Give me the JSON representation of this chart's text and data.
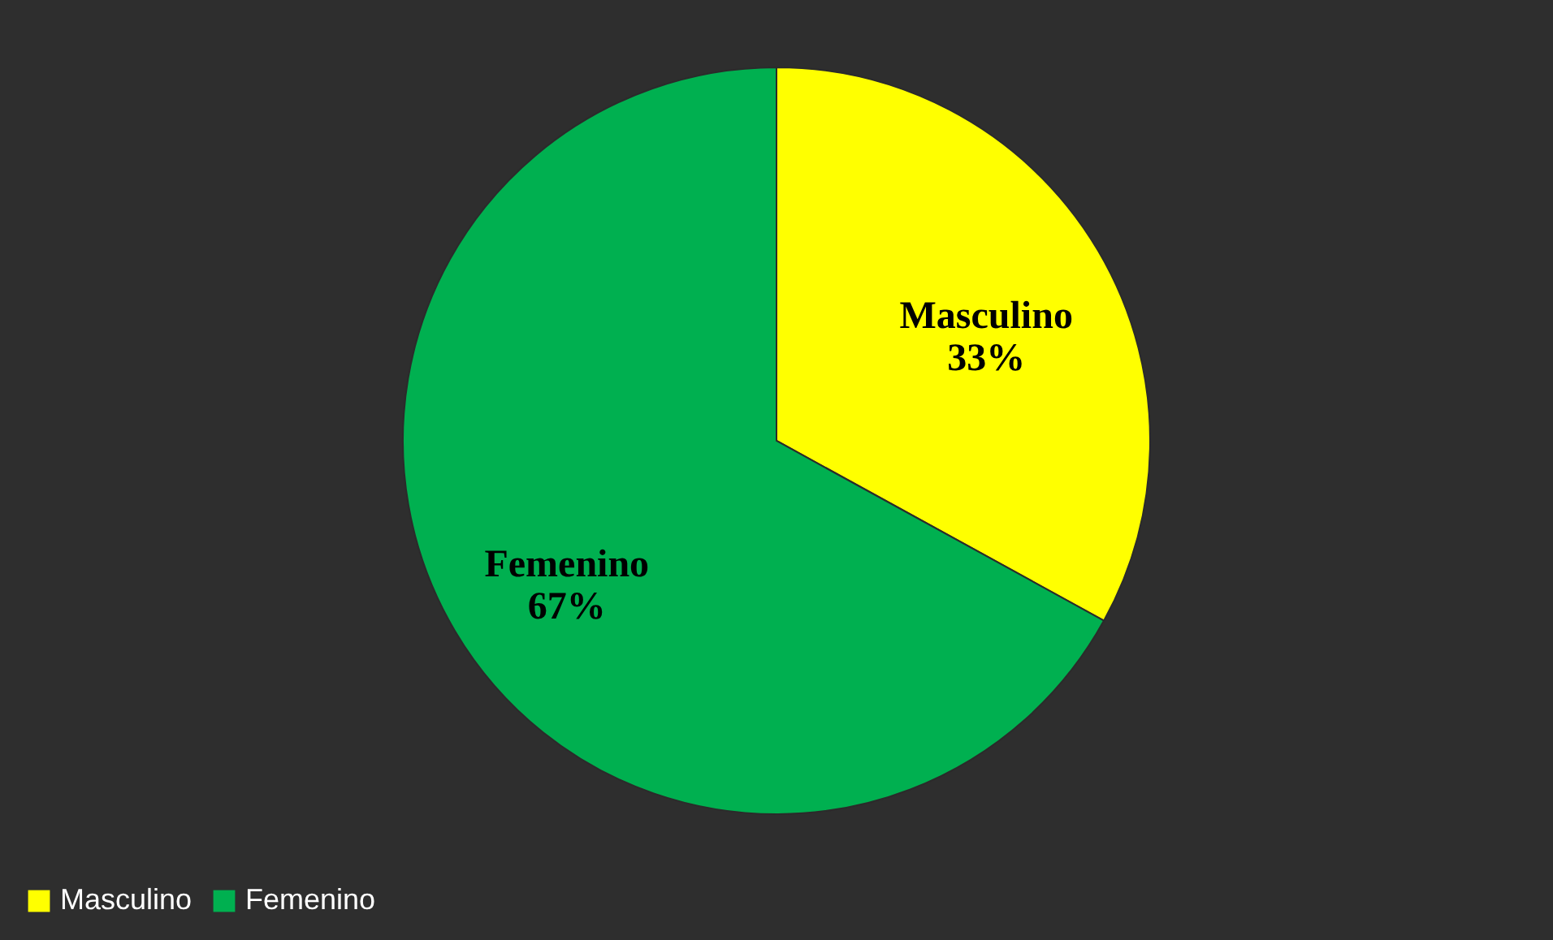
{
  "chart_data": {
    "type": "pie",
    "categories": [
      "Masculino",
      "Femenino"
    ],
    "values": [
      33,
      67
    ],
    "colors": [
      "#ffff00",
      "#00b050"
    ],
    "value_labels": [
      "33%",
      "67%"
    ],
    "legend": "bottom"
  }
}
